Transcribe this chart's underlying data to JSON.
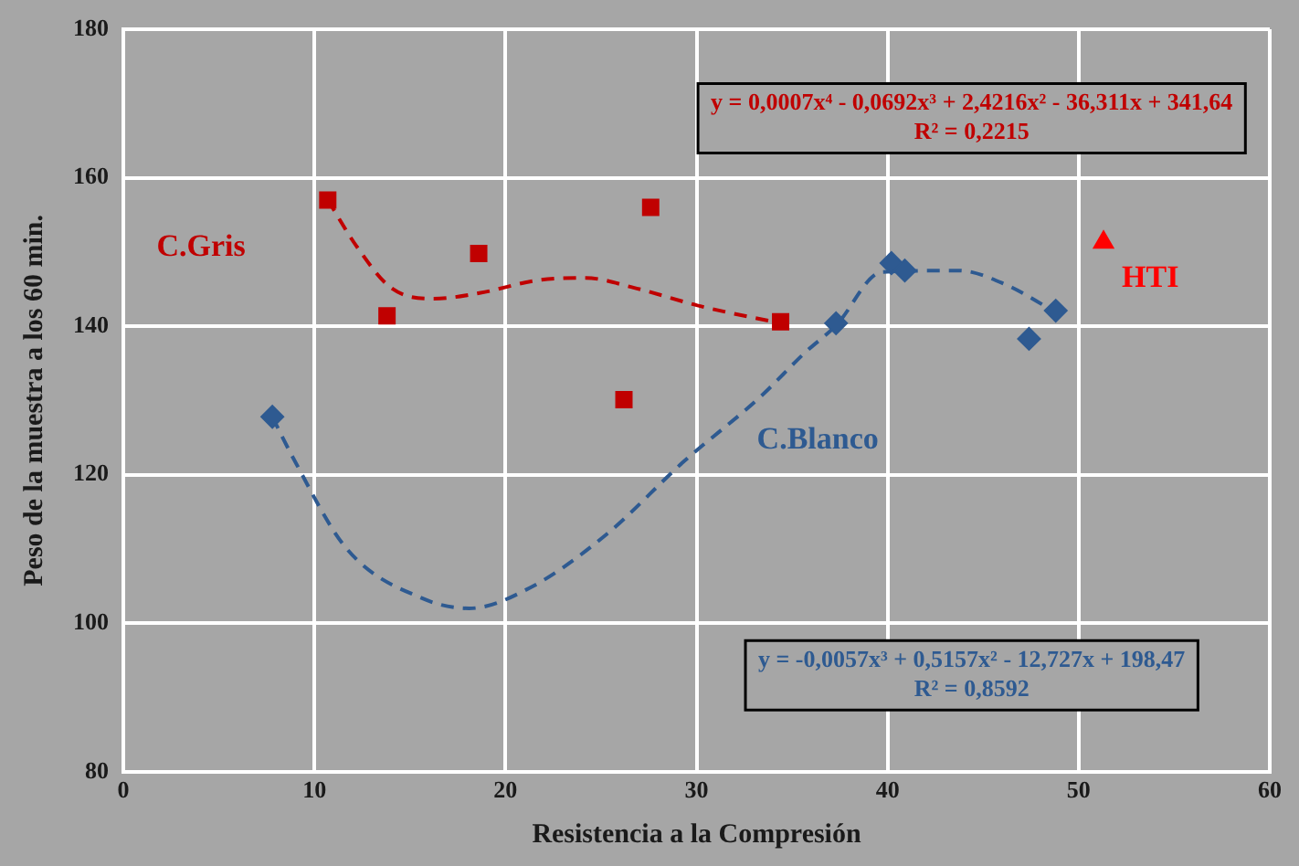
{
  "chart_data": {
    "type": "scatter",
    "xlabel": "Resistencia a la Compresión",
    "ylabel": "Peso de la muestra a los 60 min.",
    "xlim": [
      0,
      60
    ],
    "xticks": [
      0,
      10,
      20,
      30,
      40,
      50,
      60
    ],
    "ylim": [
      80,
      180
    ],
    "yticks": [
      80,
      100,
      120,
      140,
      160,
      180
    ],
    "grid": true,
    "legend": false,
    "series": [
      {
        "name": "C.Gris",
        "color": "#c00000",
        "marker": "square",
        "x": [
          10.7,
          13.8,
          18.6,
          26.2,
          27.6,
          34.4
        ],
        "values": [
          157,
          141.4,
          149.8,
          130.1,
          156,
          140.6
        ]
      },
      {
        "name": "C.Blanco",
        "color": "#2e5a91",
        "marker": "diamond",
        "x": [
          7.8,
          37.3,
          40.2,
          40.9,
          47.4,
          48.8
        ],
        "values": [
          127.8,
          140.4,
          148.5,
          147.5,
          138.3,
          142.1
        ]
      },
      {
        "name": "HTI",
        "color": "#ff0000",
        "marker": "triangle",
        "x": [
          51.3
        ],
        "values": [
          151.3
        ]
      },
      {
        "type": "line",
        "color": "#c00000",
        "line_style": "dashed",
        "marker": "none",
        "x": [
          10.7,
          12.2,
          14,
          16.2,
          18.7,
          21.7,
          24.2,
          26.7,
          30.2,
          34.4
        ],
        "values": [
          157,
          150.8,
          145.2,
          143.7,
          144.5,
          146.2,
          146.5,
          145.2,
          142.7,
          140.4
        ]
      },
      {
        "type": "line",
        "color": "#2e5a91",
        "line_style": "dashed",
        "marker": "none",
        "x": [
          7.8,
          8.9,
          11.7,
          15.7,
          18.1,
          21.3,
          25.3,
          29.3,
          33.3,
          35.7,
          37.3,
          39.7,
          43.7,
          46.1,
          49.3
        ],
        "values": [
          127.8,
          122.2,
          110,
          103.3,
          102,
          104.8,
          112,
          121.7,
          130.4,
          136.5,
          140.1,
          147.3,
          147.5,
          145.7,
          141.1
        ]
      }
    ],
    "annotations": [
      "y = 0,0007x⁴ - 0,0692x³ + 2,4216x² - 36,311x + 341,64\nR² = 0,2215",
      "y = -0,0057x³ + 0,5157x² - 12,727x + 198,47\nR² = 0,8592"
    ]
  }
}
